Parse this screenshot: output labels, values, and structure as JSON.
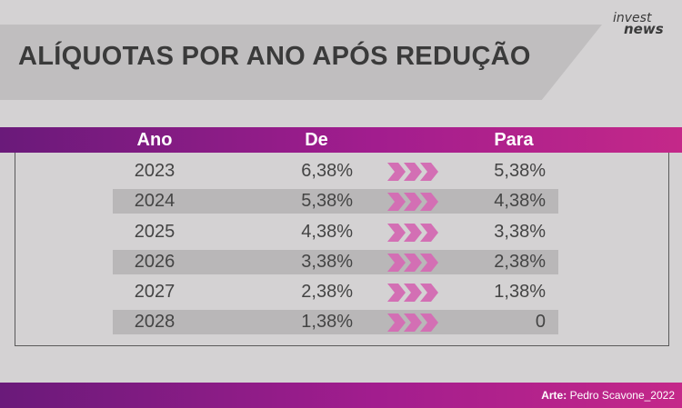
{
  "title": "ALÍQUOTAS POR ANO APÓS REDUÇÃO",
  "logo": {
    "line1": "invest",
    "line2": "news"
  },
  "table": {
    "headers": {
      "ano": "Ano",
      "de": "De",
      "para": "Para"
    },
    "rows": [
      {
        "ano": "2023",
        "de": "6,38%",
        "para": "5,38%"
      },
      {
        "ano": "2024",
        "de": "5,38%",
        "para": "4,38%"
      },
      {
        "ano": "2025",
        "de": "4,38%",
        "para": "3,38%"
      },
      {
        "ano": "2026",
        "de": "3,38%",
        "para": "2,38%"
      },
      {
        "ano": "2027",
        "de": "2,38%",
        "para": "1,38%"
      },
      {
        "ano": "2028",
        "de": "1,38%",
        "para": "0"
      }
    ]
  },
  "credit": {
    "label": "Arte:",
    "author": "Pedro Scavone_2022"
  },
  "colors": {
    "gradient_start": "#6a1a7a",
    "gradient_end": "#c42889",
    "arrow": "#d36fb4",
    "background": "#d4d2d3",
    "row_shade": "#b9b7b8"
  }
}
